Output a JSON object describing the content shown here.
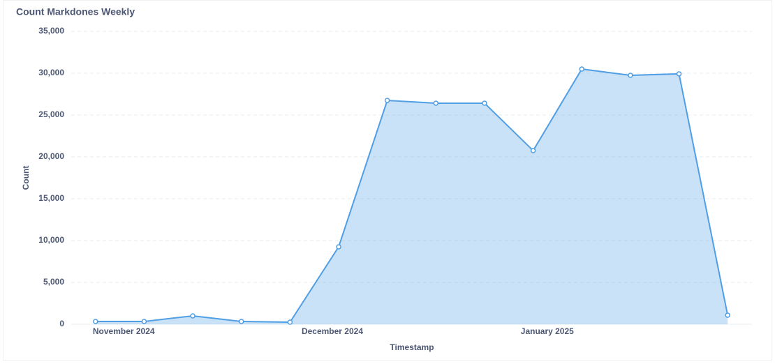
{
  "chart_data": {
    "type": "area",
    "title": "Count Markdones Weekly",
    "x_label": "Timestamp",
    "y_label": "Count",
    "categories": [
      null,
      null,
      null,
      null,
      null,
      null,
      null,
      null,
      null,
      null,
      null,
      null,
      null,
      null
    ],
    "values": [
      333,
      333,
      1000,
      333,
      250,
      9250,
      26750,
      26420,
      26420,
      20750,
      30500,
      29750,
      29920,
      1080
    ],
    "color": "#509ee3",
    "xticks": [
      {
        "value": 0.58,
        "label": "November 2024"
      },
      {
        "value": 4.87,
        "label": "December 2024"
      },
      {
        "value": 9.29,
        "label": "January 2025"
      }
    ],
    "ylim": [
      0,
      35000
    ],
    "yticks": [
      0,
      {
        "value": 5000,
        "label": "5,000"
      },
      {
        "value": 10000,
        "label": "10,000"
      },
      {
        "value": 15000,
        "label": "15,000"
      },
      {
        "value": 20000,
        "label": "20,000"
      },
      {
        "value": 25000,
        "label": "25,000"
      },
      {
        "value": 30000,
        "label": "30,000"
      },
      {
        "value": 35000,
        "label": "35,000"
      }
    ],
    "grid": true
  }
}
